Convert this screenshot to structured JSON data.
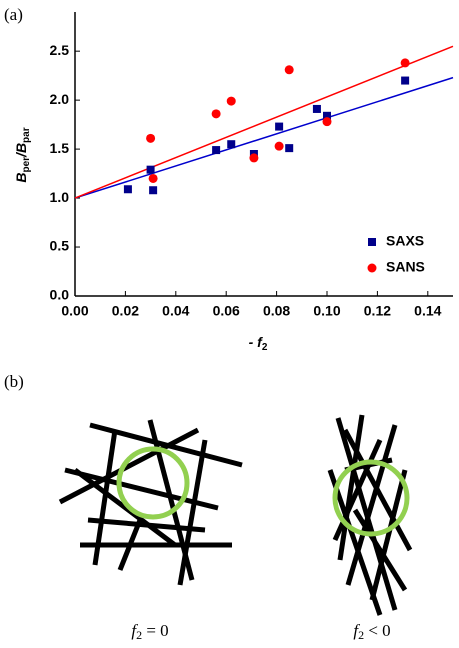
{
  "panel_a_label": "(a)",
  "panel_b_label": "(b)",
  "chart_data": {
    "type": "scatter",
    "xlabel": [
      "- f",
      "2"
    ],
    "ylabel": [
      "B",
      "per",
      "/B",
      "par"
    ],
    "xlim": [
      0,
      0.15
    ],
    "ylim": [
      0,
      2.9
    ],
    "xticks": [
      {
        "value": 0,
        "label": "0.00"
      },
      {
        "value": 0.02,
        "label": "0.02"
      },
      {
        "value": 0.04,
        "label": "0.04"
      },
      {
        "value": 0.06,
        "label": "0.06"
      },
      {
        "value": 0.08,
        "label": "0.08"
      },
      {
        "value": 0.1,
        "label": "0.10"
      },
      {
        "value": 0.12,
        "label": "0.12"
      },
      {
        "value": 0.14,
        "label": "0.14"
      }
    ],
    "yticks": [
      {
        "value": 0,
        "label": "0.0"
      },
      {
        "value": 0.5,
        "label": "0.5"
      },
      {
        "value": 1,
        "label": "1.0"
      },
      {
        "value": 1.5,
        "label": "1.5"
      },
      {
        "value": 2,
        "label": "2.0"
      },
      {
        "value": 2.5,
        "label": "2.5"
      }
    ],
    "legend": "lower right",
    "series": [
      {
        "name": "SAXS",
        "color": "#00008b",
        "marker": "square",
        "x": [
          0.021,
          0.03,
          0.031,
          0.056,
          0.062,
          0.071,
          0.081,
          0.085,
          0.096,
          0.1,
          0.131
        ],
        "values": [
          1.09,
          1.29,
          1.08,
          1.49,
          1.55,
          1.45,
          1.73,
          1.51,
          1.91,
          1.84,
          2.2
        ]
      },
      {
        "name": "SANS",
        "color": "#ff0000",
        "marker": "circle",
        "x": [
          0.03,
          0.031,
          0.056,
          0.062,
          0.071,
          0.081,
          0.085,
          0.1,
          0.131
        ],
        "values": [
          1.61,
          1.2,
          1.86,
          1.99,
          1.41,
          1.53,
          2.31,
          1.78,
          2.38
        ]
      }
    ],
    "fits": [
      {
        "color": "#0000cd",
        "x": [
          0,
          0.15
        ],
        "values": [
          1.0,
          2.23
        ]
      },
      {
        "color": "#ff0000",
        "x": [
          0,
          0.15
        ],
        "values": [
          1.0,
          2.55
        ]
      }
    ]
  },
  "diagram": {
    "captions": [
      [
        "f",
        "2",
        " = 0"
      ],
      [
        "f",
        "2",
        " < 0"
      ]
    ]
  }
}
